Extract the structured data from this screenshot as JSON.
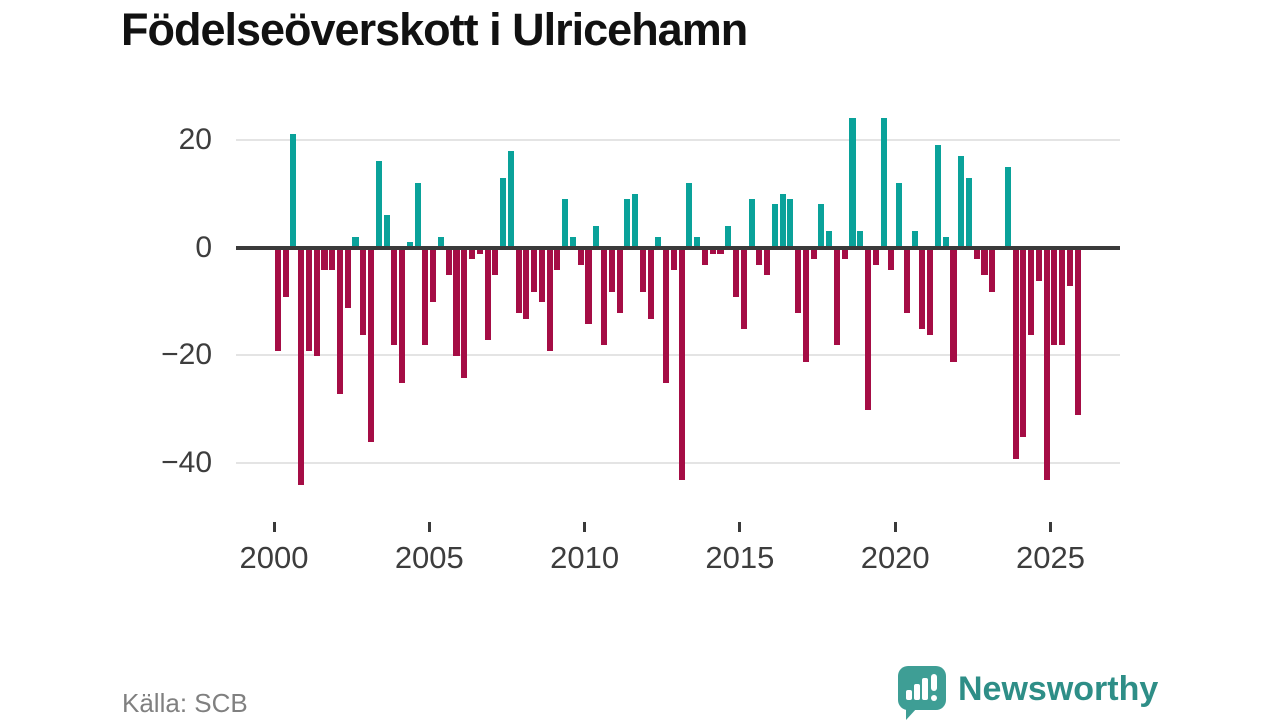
{
  "title": "Födelseöverskott i Ulricehamn",
  "source": "Källa: SCB",
  "logo": {
    "text": "Newsworthy",
    "icon": "speech-bubble-bar-chart-exclamation"
  },
  "chart_data": {
    "type": "bar",
    "title": "Födelseöverskott i Ulricehamn",
    "xlabel": "",
    "ylabel": "",
    "x_unit": "quarter",
    "x_range": "2000 Q1 – 2025 Q4",
    "ylim": [
      -46,
      26
    ],
    "grid": "horizontal",
    "legend": "none",
    "colors": {
      "positive": "#0aa29a",
      "negative": "#a50d45",
      "axis": "#3a3a3a",
      "grid": "#e4e4e4",
      "tick_text": "#3d3d3d"
    },
    "y_ticks": [
      {
        "label": "20",
        "value": 20
      },
      {
        "label": "0",
        "value": 0
      },
      {
        "label": "−20",
        "value": -20
      },
      {
        "label": "−40",
        "value": -40
      }
    ],
    "x_ticks": [
      2000,
      2005,
      2010,
      2015,
      2020,
      2025
    ],
    "years": [
      {
        "year": 2000,
        "values": [
          -19,
          -9,
          21,
          -44
        ]
      },
      {
        "year": 2001,
        "values": [
          -19,
          -20,
          -4,
          -4
        ]
      },
      {
        "year": 2002,
        "values": [
          -27,
          -11,
          2,
          -16
        ]
      },
      {
        "year": 2003,
        "values": [
          -36,
          16,
          6,
          -18
        ]
      },
      {
        "year": 2004,
        "values": [
          -25,
          1,
          12,
          -18
        ]
      },
      {
        "year": 2005,
        "values": [
          -10,
          2,
          -5,
          -20
        ]
      },
      {
        "year": 2006,
        "values": [
          -24,
          -2,
          -1,
          -17
        ]
      },
      {
        "year": 2007,
        "values": [
          -5,
          13,
          18,
          -12
        ]
      },
      {
        "year": 2008,
        "values": [
          -13,
          -8,
          -10,
          -19
        ]
      },
      {
        "year": 2009,
        "values": [
          -4,
          9,
          2,
          -3
        ]
      },
      {
        "year": 2010,
        "values": [
          -14,
          4,
          -18,
          -8
        ]
      },
      {
        "year": 2011,
        "values": [
          -12,
          9,
          10,
          -8
        ]
      },
      {
        "year": 2012,
        "values": [
          -13,
          2,
          -25,
          -4
        ]
      },
      {
        "year": 2013,
        "values": [
          -43,
          12,
          2,
          -3
        ]
      },
      {
        "year": 2014,
        "values": [
          -1,
          -1,
          4,
          -9
        ]
      },
      {
        "year": 2015,
        "values": [
          -15,
          9,
          -3,
          -5
        ]
      },
      {
        "year": 2016,
        "values": [
          8,
          10,
          9,
          -12
        ]
      },
      {
        "year": 2017,
        "values": [
          -21,
          -2,
          8,
          3
        ]
      },
      {
        "year": 2018,
        "values": [
          -18,
          -2,
          24,
          3
        ]
      },
      {
        "year": 2019,
        "values": [
          -30,
          -3,
          24,
          -4
        ]
      },
      {
        "year": 2020,
        "values": [
          12,
          -12,
          3,
          -15
        ]
      },
      {
        "year": 2021,
        "values": [
          -16,
          19,
          2,
          -21
        ]
      },
      {
        "year": 2022,
        "values": [
          17,
          13,
          -2,
          -5
        ]
      },
      {
        "year": 2023,
        "values": [
          -8,
          0,
          15,
          -39
        ]
      },
      {
        "year": 2024,
        "values": [
          -35,
          -16,
          -6,
          -43
        ]
      },
      {
        "year": 2025,
        "values": [
          -18,
          -18,
          -7,
          -31
        ]
      }
    ]
  }
}
